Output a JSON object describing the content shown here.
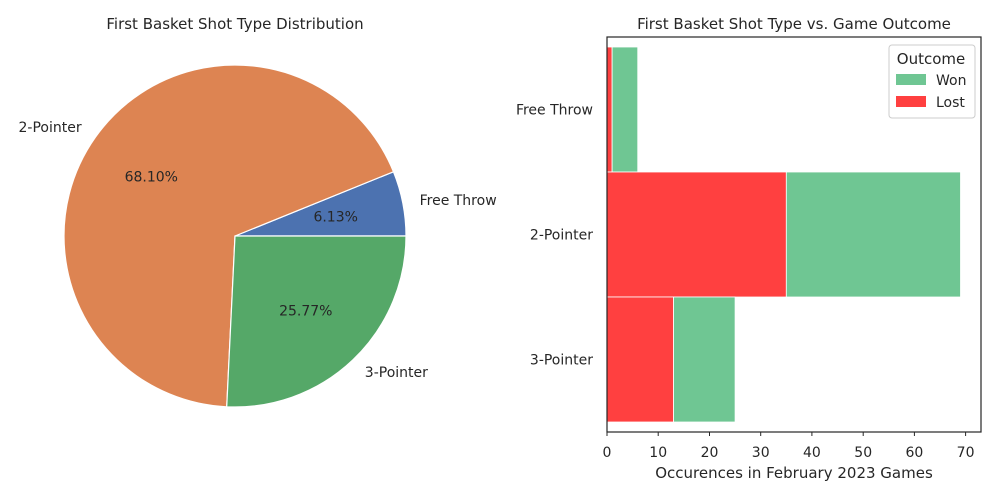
{
  "chart_data": [
    {
      "type": "pie",
      "title": "First Basket Shot Type Distribution",
      "slices": [
        {
          "label": "Free Throw",
          "percent": 6.13,
          "pct_label": "6.13%",
          "color": "#4c72b0"
        },
        {
          "label": "2-Pointer",
          "percent": 68.1,
          "pct_label": "68.10%",
          "color": "#dd8452"
        },
        {
          "label": "3-Pointer",
          "percent": 25.77,
          "pct_label": "25.77%",
          "color": "#55a868"
        }
      ]
    },
    {
      "type": "bar",
      "orientation": "horizontal",
      "stacked": true,
      "title": "First Basket Shot Type vs. Game Outcome",
      "xlabel": "Occurences in February 2023 Games",
      "ylabel": "",
      "categories": [
        "Free Throw",
        "2-Pointer",
        "3-Pointer"
      ],
      "series": [
        {
          "name": "Lost",
          "values": [
            1,
            35,
            13
          ],
          "color": "#ff4040"
        },
        {
          "name": "Won",
          "values": [
            5,
            34,
            12
          ],
          "color": "#6fc693"
        }
      ],
      "xlim": [
        0,
        73
      ],
      "xticks": [
        0,
        10,
        20,
        30,
        40,
        50,
        60,
        70
      ],
      "legend": {
        "title": "Outcome",
        "entries": [
          "Won",
          "Lost"
        ],
        "placement": "top-right"
      }
    }
  ]
}
